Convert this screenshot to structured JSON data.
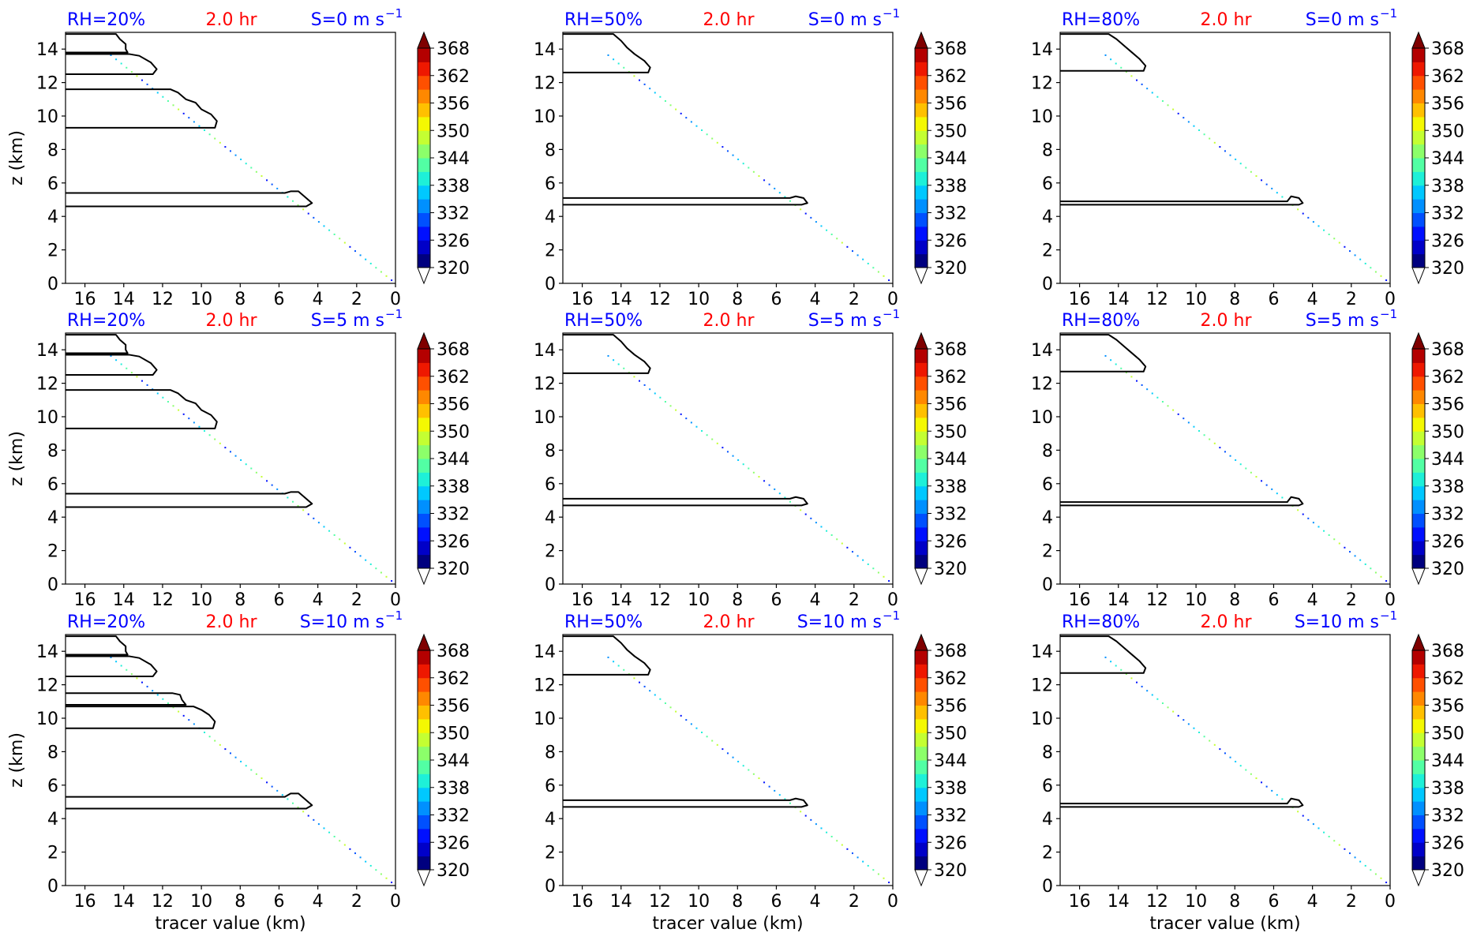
{
  "figure": {
    "colorbar": {
      "levels": [
        320,
        323,
        326,
        329,
        332,
        335,
        338,
        341,
        344,
        347,
        350,
        353,
        356,
        359,
        362,
        365,
        368
      ],
      "tick_labels": [
        "368",
        "362",
        "356",
        "350",
        "344",
        "338",
        "332",
        "326",
        "320"
      ],
      "colors": [
        "#00007f",
        "#0000c8",
        "#0010ff",
        "#0050ff",
        "#0090ff",
        "#00c8ff",
        "#1ef0d8",
        "#52ffa4",
        "#8cff6a",
        "#c4ff32",
        "#f4f802",
        "#ffc000",
        "#ff8800",
        "#ff5000",
        "#ee1800",
        "#b40000"
      ],
      "extend_over_color": "#7f0000",
      "extend_under_color": "#ffffff"
    },
    "title_colors": {
      "rh": "#0000ff",
      "time": "#ff0000",
      "shear": "#0000ff"
    }
  },
  "chart_data": [
    {
      "type": "contour",
      "rh_label": "RH=20%",
      "time_label": "2.0 hr",
      "shear_label": "S=0 m s",
      "shear_exp": "−1",
      "xlabel": "",
      "ylabel": "z (km)",
      "xlim": [
        17,
        0
      ],
      "ylim": [
        0,
        15
      ],
      "xticks": [
        "16",
        "14",
        "12",
        "10",
        "8",
        "6",
        "4",
        "2",
        "0"
      ],
      "yticks": [
        "0",
        "2",
        "4",
        "6",
        "8",
        "10",
        "12",
        "14"
      ],
      "contours": [
        {
          "y_bottom": 4.6,
          "y_top": 5.4,
          "nose": [
            [
              4.6,
              4.6
            ],
            [
              4.3,
              4.8
            ],
            [
              4.7,
              5.2
            ],
            [
              5.0,
              5.5
            ],
            [
              5.4,
              5.5
            ],
            [
              5.7,
              5.4
            ]
          ]
        },
        {
          "y_bottom": 9.3,
          "y_top": 11.6,
          "nose": [
            [
              9.3,
              9.3
            ],
            [
              9.2,
              9.7
            ],
            [
              9.5,
              10.1
            ],
            [
              10.0,
              10.4
            ],
            [
              10.3,
              10.8
            ],
            [
              10.8,
              11.0
            ],
            [
              11.2,
              11.4
            ],
            [
              11.6,
              11.6
            ]
          ]
        },
        {
          "y_bottom": 12.5,
          "y_top": 13.7,
          "nose": [
            [
              12.5,
              12.5
            ],
            [
              12.3,
              12.8
            ],
            [
              12.6,
              13.2
            ],
            [
              13.2,
              13.6
            ],
            [
              13.7,
              13.7
            ]
          ]
        },
        {
          "y_bottom": 13.8,
          "y_top": 14.9,
          "nose": [
            [
              13.8,
              13.8
            ],
            [
              13.9,
              14.0
            ],
            [
              13.9,
              14.3
            ],
            [
              14.2,
              14.6
            ],
            [
              14.4,
              14.9
            ]
          ]
        }
      ]
    },
    {
      "type": "contour",
      "rh_label": "RH=50%",
      "time_label": "2.0 hr",
      "shear_label": "S=0 m s",
      "shear_exp": "−1",
      "xlabel": "",
      "ylabel": "",
      "xlim": [
        17,
        0
      ],
      "ylim": [
        0,
        15
      ],
      "xticks": [
        "16",
        "14",
        "12",
        "10",
        "8",
        "6",
        "4",
        "2",
        "0"
      ],
      "yticks": [
        "0",
        "2",
        "4",
        "6",
        "8",
        "10",
        "12",
        "14"
      ],
      "contours": [
        {
          "y_bottom": 4.7,
          "y_top": 5.1,
          "nose": [
            [
              4.7,
              4.7
            ],
            [
              4.4,
              4.8
            ],
            [
              4.6,
              5.1
            ],
            [
              5.0,
              5.2
            ],
            [
              5.3,
              5.1
            ]
          ]
        },
        {
          "y_bottom": 12.6,
          "y_top": 14.9,
          "nose": [
            [
              12.6,
              12.6
            ],
            [
              12.5,
              12.9
            ],
            [
              12.8,
              13.3
            ],
            [
              13.3,
              13.7
            ],
            [
              13.7,
              14.1
            ],
            [
              14.0,
              14.5
            ],
            [
              14.4,
              14.9
            ]
          ]
        }
      ]
    },
    {
      "type": "contour",
      "rh_label": "RH=80%",
      "time_label": "2.0 hr",
      "shear_label": "S=0 m s",
      "shear_exp": "−1",
      "xlabel": "",
      "ylabel": "",
      "xlim": [
        17,
        0
      ],
      "ylim": [
        0,
        15
      ],
      "xticks": [
        "16",
        "14",
        "12",
        "10",
        "8",
        "6",
        "4",
        "2",
        "0"
      ],
      "yticks": [
        "0",
        "2",
        "4",
        "6",
        "8",
        "10",
        "12",
        "14"
      ],
      "contours": [
        {
          "y_bottom": 4.7,
          "y_top": 4.9,
          "nose": [
            [
              4.7,
              4.7
            ],
            [
              4.5,
              4.8
            ],
            [
              4.7,
              5.1
            ],
            [
              5.1,
              5.2
            ],
            [
              5.3,
              4.9
            ]
          ]
        },
        {
          "y_bottom": 12.7,
          "y_top": 14.9,
          "nose": [
            [
              12.7,
              12.7
            ],
            [
              12.6,
              13.0
            ],
            [
              12.9,
              13.4
            ],
            [
              13.3,
              13.8
            ],
            [
              13.7,
              14.2
            ],
            [
              14.1,
              14.6
            ],
            [
              14.5,
              14.9
            ]
          ]
        }
      ]
    },
    {
      "type": "contour",
      "rh_label": "RH=20%",
      "time_label": "2.0 hr",
      "shear_label": "S=5 m s",
      "shear_exp": "−1",
      "xlabel": "",
      "ylabel": "z (km)",
      "xlim": [
        17,
        0
      ],
      "ylim": [
        0,
        15
      ],
      "xticks": [
        "16",
        "14",
        "12",
        "10",
        "8",
        "6",
        "4",
        "2",
        "0"
      ],
      "yticks": [
        "0",
        "2",
        "4",
        "6",
        "8",
        "10",
        "12",
        "14"
      ],
      "contours": [
        {
          "y_bottom": 4.6,
          "y_top": 5.4,
          "nose": [
            [
              4.6,
              4.6
            ],
            [
              4.3,
              4.8
            ],
            [
              4.7,
              5.2
            ],
            [
              5.0,
              5.5
            ],
            [
              5.4,
              5.5
            ],
            [
              5.7,
              5.4
            ]
          ]
        },
        {
          "y_bottom": 9.3,
          "y_top": 11.6,
          "nose": [
            [
              9.3,
              9.3
            ],
            [
              9.2,
              9.7
            ],
            [
              9.5,
              10.1
            ],
            [
              10.0,
              10.4
            ],
            [
              10.3,
              10.8
            ],
            [
              10.8,
              11.0
            ],
            [
              11.2,
              11.4
            ],
            [
              11.6,
              11.6
            ]
          ]
        },
        {
          "y_bottom": 12.5,
          "y_top": 13.7,
          "nose": [
            [
              12.5,
              12.5
            ],
            [
              12.3,
              12.8
            ],
            [
              12.6,
              13.2
            ],
            [
              13.2,
              13.6
            ],
            [
              13.7,
              13.7
            ]
          ]
        },
        {
          "y_bottom": 13.8,
          "y_top": 14.9,
          "nose": [
            [
              13.8,
              13.8
            ],
            [
              13.9,
              14.0
            ],
            [
              13.9,
              14.3
            ],
            [
              14.2,
              14.6
            ],
            [
              14.4,
              14.9
            ]
          ]
        }
      ]
    },
    {
      "type": "contour",
      "rh_label": "RH=50%",
      "time_label": "2.0 hr",
      "shear_label": "S=5 m s",
      "shear_exp": "−1",
      "xlabel": "",
      "ylabel": "",
      "xlim": [
        17,
        0
      ],
      "ylim": [
        0,
        15
      ],
      "xticks": [
        "16",
        "14",
        "12",
        "10",
        "8",
        "6",
        "4",
        "2",
        "0"
      ],
      "yticks": [
        "0",
        "2",
        "4",
        "6",
        "8",
        "10",
        "12",
        "14"
      ],
      "contours": [
        {
          "y_bottom": 4.7,
          "y_top": 5.1,
          "nose": [
            [
              4.7,
              4.7
            ],
            [
              4.4,
              4.8
            ],
            [
              4.6,
              5.1
            ],
            [
              5.0,
              5.2
            ],
            [
              5.3,
              5.1
            ]
          ]
        },
        {
          "y_bottom": 12.6,
          "y_top": 14.9,
          "nose": [
            [
              12.6,
              12.6
            ],
            [
              12.5,
              12.9
            ],
            [
              12.8,
              13.3
            ],
            [
              13.3,
              13.7
            ],
            [
              13.7,
              14.1
            ],
            [
              14.0,
              14.5
            ],
            [
              14.4,
              14.9
            ]
          ]
        }
      ]
    },
    {
      "type": "contour",
      "rh_label": "RH=80%",
      "time_label": "2.0 hr",
      "shear_label": "S=5 m s",
      "shear_exp": "−1",
      "xlabel": "",
      "ylabel": "",
      "xlim": [
        17,
        0
      ],
      "ylim": [
        0,
        15
      ],
      "xticks": [
        "16",
        "14",
        "12",
        "10",
        "8",
        "6",
        "4",
        "2",
        "0"
      ],
      "yticks": [
        "0",
        "2",
        "4",
        "6",
        "8",
        "10",
        "12",
        "14"
      ],
      "contours": [
        {
          "y_bottom": 4.7,
          "y_top": 4.9,
          "nose": [
            [
              4.7,
              4.7
            ],
            [
              4.5,
              4.8
            ],
            [
              4.7,
              5.1
            ],
            [
              5.1,
              5.2
            ],
            [
              5.3,
              4.9
            ]
          ]
        },
        {
          "y_bottom": 12.7,
          "y_top": 14.9,
          "nose": [
            [
              12.7,
              12.7
            ],
            [
              12.6,
              13.0
            ],
            [
              12.9,
              13.4
            ],
            [
              13.3,
              13.8
            ],
            [
              13.7,
              14.2
            ],
            [
              14.1,
              14.6
            ],
            [
              14.5,
              14.9
            ]
          ]
        }
      ]
    },
    {
      "type": "contour",
      "rh_label": "RH=20%",
      "time_label": "2.0 hr",
      "shear_label": "S=10 m s",
      "shear_exp": "−1",
      "xlabel": "tracer value (km)",
      "ylabel": "z (km)",
      "xlim": [
        17,
        0
      ],
      "ylim": [
        0,
        15
      ],
      "xticks": [
        "16",
        "14",
        "12",
        "10",
        "8",
        "6",
        "4",
        "2",
        "0"
      ],
      "yticks": [
        "0",
        "2",
        "4",
        "6",
        "8",
        "10",
        "12",
        "14"
      ],
      "contours": [
        {
          "y_bottom": 4.6,
          "y_top": 5.3,
          "nose": [
            [
              4.6,
              4.6
            ],
            [
              4.3,
              4.8
            ],
            [
              4.7,
              5.2
            ],
            [
              5.0,
              5.5
            ],
            [
              5.4,
              5.5
            ],
            [
              5.7,
              5.3
            ]
          ]
        },
        {
          "y_bottom": 9.4,
          "y_top": 10.7,
          "nose": [
            [
              9.4,
              9.4
            ],
            [
              9.3,
              9.8
            ],
            [
              9.6,
              10.2
            ],
            [
              10.0,
              10.5
            ],
            [
              10.4,
              10.7
            ]
          ]
        },
        {
          "y_bottom": 10.8,
          "y_top": 11.5,
          "nose": [
            [
              10.8,
              10.8
            ],
            [
              11.0,
              11.1
            ],
            [
              11.1,
              11.4
            ],
            [
              11.5,
              11.5
            ]
          ]
        },
        {
          "y_bottom": 12.5,
          "y_top": 13.7,
          "nose": [
            [
              12.5,
              12.5
            ],
            [
              12.3,
              12.8
            ],
            [
              12.6,
              13.2
            ],
            [
              13.2,
              13.6
            ],
            [
              13.7,
              13.7
            ]
          ]
        },
        {
          "y_bottom": 13.8,
          "y_top": 14.9,
          "nose": [
            [
              13.8,
              13.8
            ],
            [
              13.9,
              14.0
            ],
            [
              13.9,
              14.3
            ],
            [
              14.2,
              14.6
            ],
            [
              14.4,
              14.9
            ]
          ]
        }
      ]
    },
    {
      "type": "contour",
      "rh_label": "RH=50%",
      "time_label": "2.0 hr",
      "shear_label": "S=10 m s",
      "shear_exp": "−1",
      "xlabel": "tracer value (km)",
      "ylabel": "",
      "xlim": [
        17,
        0
      ],
      "ylim": [
        0,
        15
      ],
      "xticks": [
        "16",
        "14",
        "12",
        "10",
        "8",
        "6",
        "4",
        "2",
        "0"
      ],
      "yticks": [
        "0",
        "2",
        "4",
        "6",
        "8",
        "10",
        "12",
        "14"
      ],
      "contours": [
        {
          "y_bottom": 4.7,
          "y_top": 5.1,
          "nose": [
            [
              4.7,
              4.7
            ],
            [
              4.4,
              4.8
            ],
            [
              4.6,
              5.1
            ],
            [
              5.0,
              5.2
            ],
            [
              5.3,
              5.1
            ]
          ]
        },
        {
          "y_bottom": 12.6,
          "y_top": 14.9,
          "nose": [
            [
              12.6,
              12.6
            ],
            [
              12.5,
              12.9
            ],
            [
              12.8,
              13.3
            ],
            [
              13.3,
              13.7
            ],
            [
              13.7,
              14.1
            ],
            [
              14.0,
              14.5
            ],
            [
              14.4,
              14.9
            ]
          ]
        }
      ]
    },
    {
      "type": "contour",
      "rh_label": "RH=80%",
      "time_label": "2.0 hr",
      "shear_label": "S=10 m s",
      "shear_exp": "−1",
      "xlabel": "tracer value (km)",
      "ylabel": "",
      "xlim": [
        17,
        0
      ],
      "ylim": [
        0,
        15
      ],
      "xticks": [
        "16",
        "14",
        "12",
        "10",
        "8",
        "6",
        "4",
        "2",
        "0"
      ],
      "yticks": [
        "0",
        "2",
        "4",
        "6",
        "8",
        "10",
        "12",
        "14"
      ],
      "contours": [
        {
          "y_bottom": 4.7,
          "y_top": 4.9,
          "nose": [
            [
              4.7,
              4.7
            ],
            [
              4.5,
              4.8
            ],
            [
              4.7,
              5.1
            ],
            [
              5.1,
              5.2
            ],
            [
              5.3,
              4.9
            ]
          ]
        },
        {
          "y_bottom": 12.7,
          "y_top": 14.9,
          "nose": [
            [
              12.7,
              12.7
            ],
            [
              12.6,
              13.0
            ],
            [
              12.9,
              13.4
            ],
            [
              13.3,
              13.8
            ],
            [
              13.7,
              14.2
            ],
            [
              14.1,
              14.6
            ],
            [
              14.5,
              14.9
            ]
          ]
        }
      ]
    }
  ]
}
